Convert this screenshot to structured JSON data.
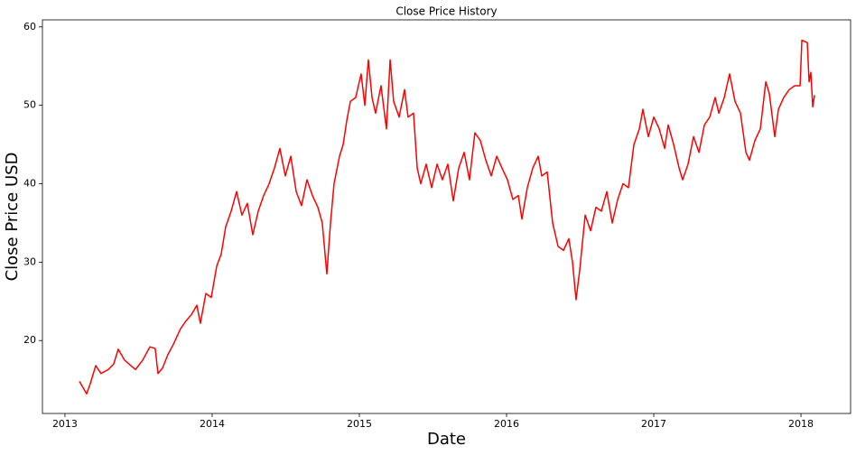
{
  "chart_data": {
    "type": "line",
    "title": "Close Price History",
    "xlabel": "Date",
    "ylabel": "Close Price USD",
    "x": [
      2013.098,
      2013.147,
      2013.172,
      2013.209,
      2013.245,
      2013.294,
      2013.331,
      2013.362,
      2013.405,
      2013.448,
      2013.479,
      2013.528,
      2013.577,
      2013.613,
      2013.632,
      2013.663,
      2013.699,
      2013.736,
      2013.785,
      2013.822,
      2013.859,
      2013.896,
      2013.92,
      2013.957,
      2013.994,
      2014.031,
      2014.061,
      2014.092,
      2014.129,
      2014.166,
      2014.202,
      2014.239,
      2014.276,
      2014.313,
      2014.35,
      2014.387,
      2014.423,
      2014.46,
      2014.497,
      2014.534,
      2014.571,
      2014.607,
      2014.644,
      2014.681,
      2014.718,
      2014.748,
      2014.779,
      2014.804,
      2014.828,
      2014.865,
      2014.89,
      2014.914,
      2014.939,
      2014.975,
      2015.012,
      2015.037,
      2015.061,
      2015.086,
      2015.11,
      2015.147,
      2015.184,
      2015.209,
      2015.233,
      2015.27,
      2015.307,
      2015.331,
      2015.368,
      2015.393,
      2015.417,
      2015.454,
      2015.491,
      2015.528,
      2015.564,
      2015.601,
      2015.638,
      2015.675,
      2015.712,
      2015.748,
      2015.785,
      2015.822,
      2015.859,
      2015.896,
      2015.933,
      2015.969,
      2016.006,
      2016.043,
      2016.08,
      2016.104,
      2016.141,
      2016.178,
      2016.215,
      2016.239,
      2016.276,
      2016.313,
      2016.35,
      2016.387,
      2016.423,
      2016.448,
      2016.472,
      2016.497,
      2016.534,
      2016.571,
      2016.607,
      2016.644,
      2016.681,
      2016.718,
      2016.755,
      2016.791,
      2016.828,
      2016.865,
      2016.902,
      2016.926,
      2016.963,
      2017.0,
      2017.037,
      2017.074,
      2017.098,
      2017.135,
      2017.172,
      2017.196,
      2017.233,
      2017.27,
      2017.307,
      2017.344,
      2017.38,
      2017.417,
      2017.442,
      2017.479,
      2017.515,
      2017.552,
      2017.589,
      2017.626,
      2017.65,
      2017.687,
      2017.724,
      2017.761,
      2017.785,
      2017.822,
      2017.847,
      2017.883,
      2017.92,
      2017.957,
      2017.994,
      2018.006,
      2018.043,
      2018.055,
      2018.067,
      2018.08,
      2018.092
    ],
    "values": [
      14.8,
      13.2,
      14.5,
      16.8,
      15.8,
      16.3,
      17.0,
      18.9,
      17.5,
      16.8,
      16.3,
      17.5,
      19.2,
      19.0,
      15.8,
      16.5,
      18.2,
      19.5,
      21.5,
      22.5,
      23.3,
      24.5,
      22.2,
      26.0,
      25.5,
      29.5,
      31.0,
      34.5,
      36.5,
      39.0,
      36.0,
      37.5,
      33.5,
      36.5,
      38.5,
      40.0,
      42.0,
      44.5,
      41.0,
      43.5,
      39.0,
      37.2,
      40.5,
      38.5,
      37.0,
      35.0,
      28.5,
      35.0,
      40.0,
      43.5,
      45.0,
      48.0,
      50.5,
      51.0,
      54.0,
      50.0,
      55.8,
      51.0,
      49.0,
      52.5,
      47.0,
      55.8,
      50.5,
      48.5,
      52.0,
      48.5,
      49.0,
      42.0,
      40.0,
      42.5,
      39.5,
      42.5,
      40.5,
      42.5,
      37.8,
      42.0,
      44.0,
      40.5,
      46.5,
      45.5,
      43.0,
      41.0,
      43.5,
      42.0,
      40.5,
      38.0,
      38.5,
      35.5,
      39.5,
      42.0,
      43.5,
      41.0,
      41.5,
      35.0,
      32.0,
      31.5,
      33.0,
      30.0,
      25.2,
      29.0,
      36.0,
      34.0,
      37.0,
      36.5,
      39.0,
      35.0,
      38.0,
      40.0,
      39.5,
      45.0,
      47.0,
      49.5,
      46.0,
      48.5,
      47.0,
      44.5,
      47.5,
      45.0,
      42.0,
      40.5,
      42.5,
      46.0,
      44.0,
      47.5,
      48.5,
      51.0,
      49.0,
      51.0,
      54.0,
      50.5,
      49.0,
      44.0,
      43.0,
      45.5,
      47.0,
      53.0,
      51.5,
      46.0,
      49.5,
      51.0,
      52.0,
      52.5,
      52.5,
      58.3,
      58.0,
      53.0,
      54.2,
      49.8,
      51.3
    ],
    "color": "#ff0000",
    "xlim": [
      2012.847,
      2018.337
    ],
    "xticks": [
      2013,
      2014,
      2015,
      2016,
      2017,
      2018
    ],
    "ylim": [
      10.7,
      60.9
    ],
    "yticks": [
      20,
      30,
      40,
      50,
      60
    ]
  }
}
